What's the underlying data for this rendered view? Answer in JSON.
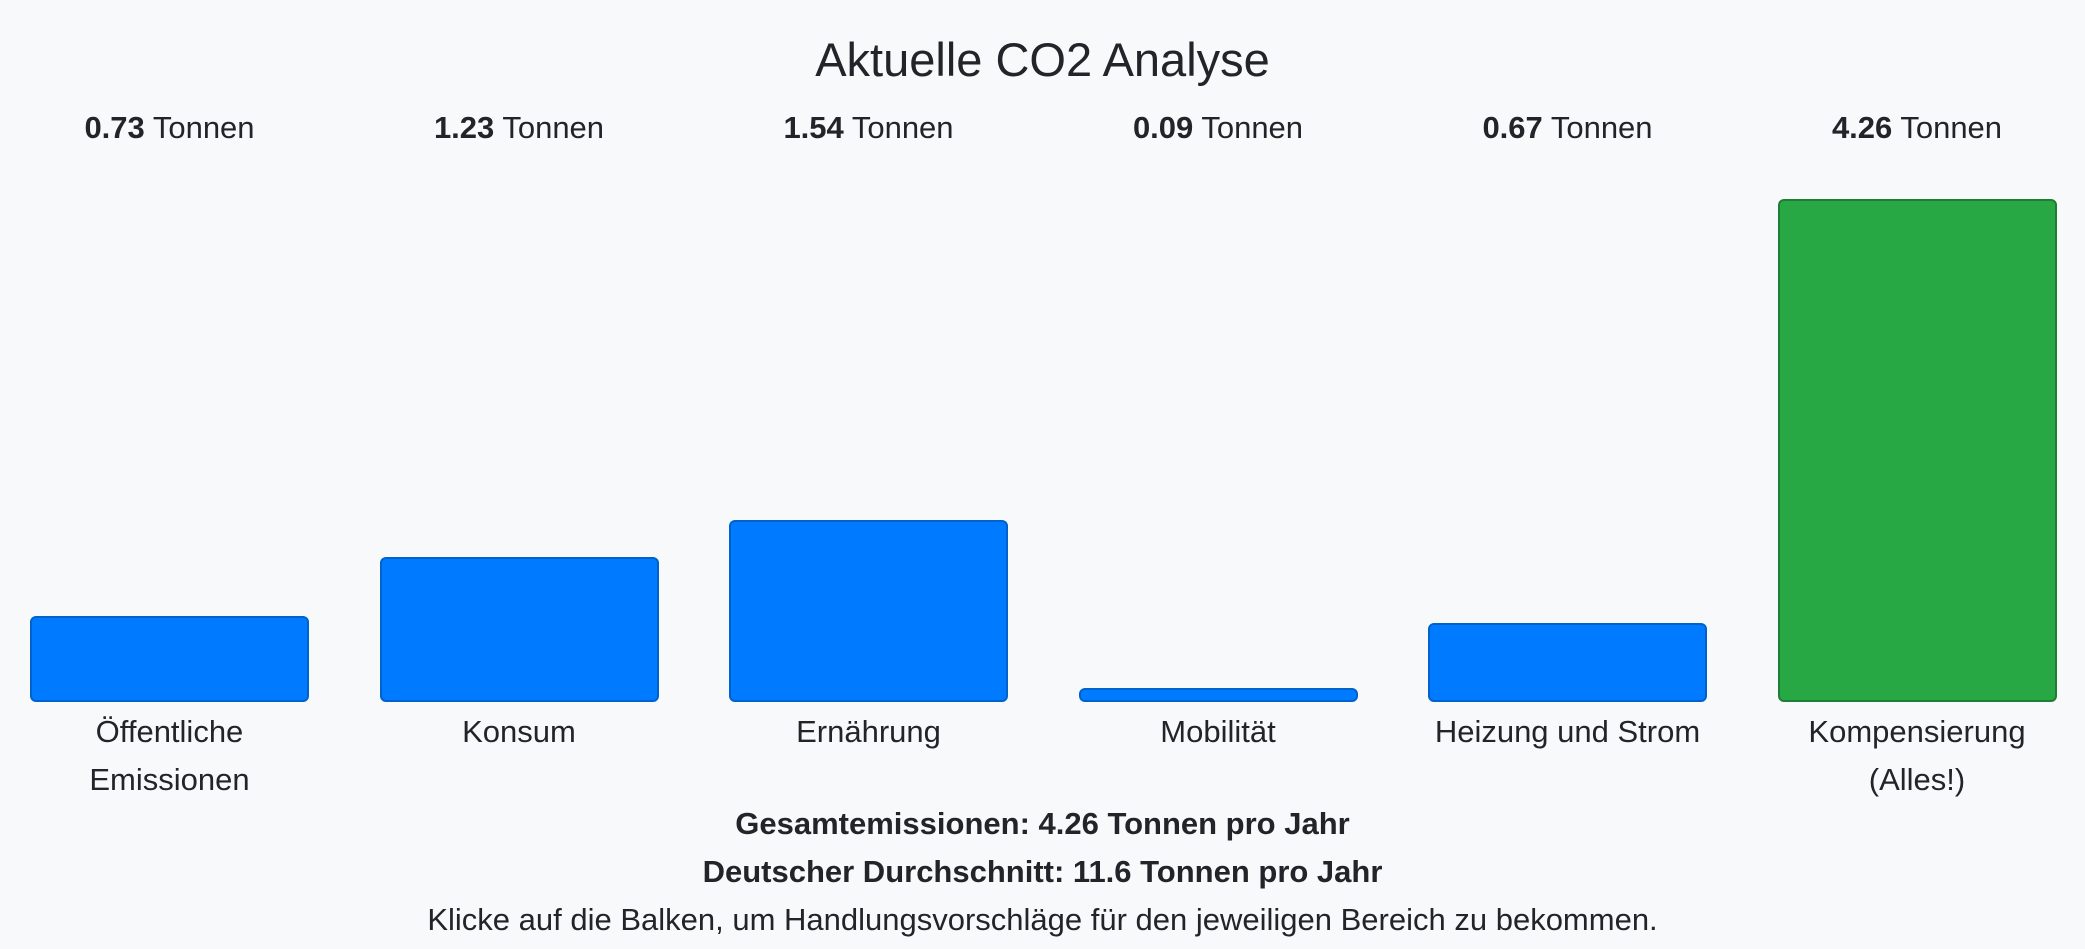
{
  "colors": {
    "bar_default": "#007bff",
    "bar_highlight": "#28a745",
    "background": "#f8f9fa",
    "text": "#212529"
  },
  "chart_data": {
    "type": "bar",
    "title": "Aktuelle CO2 Analyse",
    "unit": "Tonnen",
    "categories": [
      "Öffentliche Emissionen",
      "Konsum",
      "Ernährung",
      "Mobilität",
      "Heizung und Strom",
      "Kompensierung (Alles!)"
    ],
    "category_lines": [
      [
        "Öffentliche",
        "Emissionen"
      ],
      [
        "Konsum"
      ],
      [
        "Ernährung"
      ],
      [
        "Mobilität"
      ],
      [
        "Heizung und Strom"
      ],
      [
        "Kompensierung",
        "(Alles!)"
      ]
    ],
    "values": [
      0.73,
      1.23,
      1.54,
      0.09,
      0.67,
      4.26
    ],
    "value_labels": [
      "0.73",
      "1.23",
      "1.54",
      "0.09",
      "0.67",
      "4.26"
    ],
    "bar_colors": [
      "#007bff",
      "#007bff",
      "#007bff",
      "#007bff",
      "#007bff",
      "#28a745"
    ],
    "ylim": [
      0,
      4.26
    ],
    "xlabel": "",
    "ylabel": ""
  },
  "summary": {
    "total": "Gesamtemissionen: 4.26 Tonnen pro Jahr",
    "average": "Deutscher Durchschnitt: 11.6 Tonnen pro Jahr",
    "hint": "Klicke auf die Balken, um Handlungsvorschläge für den jeweiligen Bereich zu bekommen."
  }
}
